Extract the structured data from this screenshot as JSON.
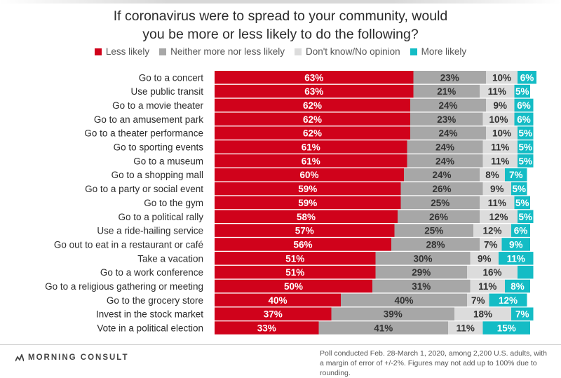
{
  "chart_data": {
    "type": "bar",
    "orientation": "horizontal",
    "stacked": true,
    "title": "If coronavirus were to spread to your community, would you be more or less likely to do the following?",
    "title_lines": [
      "If coronavirus were to spread to your community, would",
      "you be more or less likely to do the following?"
    ],
    "categories": [
      "Go to a concert",
      "Use public transit",
      "Go to a movie theater",
      "Go to an amusement park",
      "Go to a theater performance",
      "Go to sporting events",
      "Go to a museum",
      "Go to a shopping mall",
      "Go to a party or social event",
      "Go to the gym",
      "Go to a political rally",
      "Use a ride-hailing service",
      "Go out to eat in a restaurant or café",
      "Take a vacation",
      "Go to a work conference",
      "Go to a religious gathering or meeting",
      "Go to the grocery store",
      "Invest in the stock market",
      "Vote in a political election"
    ],
    "series": [
      {
        "name": "Less likely",
        "color": "#d0021b",
        "label_color": "#ffffff",
        "values": [
          63,
          63,
          62,
          62,
          62,
          61,
          61,
          60,
          59,
          59,
          58,
          57,
          56,
          51,
          51,
          50,
          40,
          37,
          33
        ],
        "labels": [
          "63%",
          "63%",
          "62%",
          "62%",
          "62%",
          "61%",
          "61%",
          "60%",
          "59%",
          "59%",
          "58%",
          "57%",
          "56%",
          "51%",
          "51%",
          "50%",
          "40%",
          "37%",
          "33%"
        ]
      },
      {
        "name": "Neither more nor less likely",
        "color": "#a7a7a7",
        "label_color": "#333333",
        "values": [
          23,
          21,
          24,
          23,
          24,
          24,
          24,
          24,
          26,
          25,
          26,
          25,
          28,
          30,
          29,
          31,
          40,
          39,
          41
        ],
        "labels": [
          "23%",
          "21%",
          "24%",
          "23%",
          "24%",
          "24%",
          "24%",
          "24%",
          "26%",
          "25%",
          "26%",
          "25%",
          "28%",
          "30%",
          "29%",
          "31%",
          "40%",
          "39%",
          "41%"
        ]
      },
      {
        "name": "Don't know/No opinion",
        "color": "#dcdcdc",
        "label_color": "#333333",
        "values": [
          10,
          11,
          9,
          10,
          10,
          11,
          11,
          8,
          9,
          11,
          12,
          12,
          7,
          9,
          16,
          11,
          7,
          18,
          11
        ],
        "labels": [
          "10%",
          "11%",
          "9%",
          "10%",
          "10%",
          "11%",
          "11%",
          "8%",
          "9%",
          "11%",
          "12%",
          "12%",
          "7%",
          "9%",
          "16%",
          "11%",
          "7%",
          "18%",
          "11%"
        ]
      },
      {
        "name": "More likely",
        "color": "#14bcc5",
        "label_color": "#ffffff",
        "values": [
          6,
          5,
          6,
          6,
          5,
          5,
          5,
          7,
          5,
          5,
          5,
          6,
          9,
          11,
          5,
          8,
          12,
          7,
          15
        ],
        "labels": [
          "6%",
          "5%",
          "6%",
          "6%",
          "5%",
          "5%",
          "5%",
          "7%",
          "5%",
          "5%",
          "5%",
          "6%",
          "9%",
          "11%",
          "",
          "8%",
          "12%",
          "7%",
          "15%"
        ]
      }
    ],
    "xlim": [
      0,
      100
    ],
    "xlabel": "",
    "ylabel": "",
    "legend": "top-center",
    "grid": false
  },
  "footer": {
    "brand": "MORNING CONSULT",
    "source": "Poll conducted Feb. 28-March 1, 2020, among 2,200 U.S. adults, with a margin of error of +/-2%. Figures may not add up to 100% due to rounding."
  }
}
